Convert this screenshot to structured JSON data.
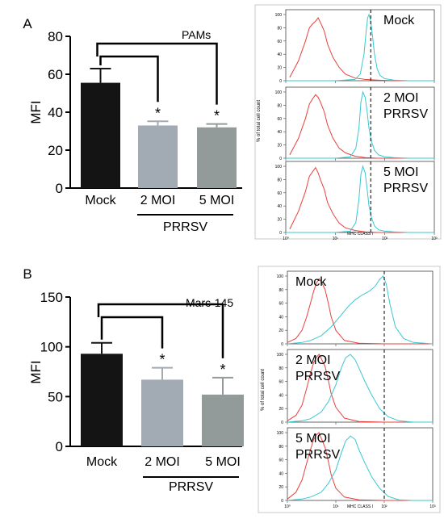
{
  "chart_data": [
    {
      "type": "bar",
      "panel_label": "A",
      "title": "PAMs",
      "ylabel": "MFI",
      "ylim": [
        0,
        80
      ],
      "yticks": [
        "0",
        "20",
        "40",
        "60",
        "80"
      ],
      "categories": [
        "Mock",
        "2 MOI",
        "5 MOI"
      ],
      "values": [
        55.5,
        33,
        32
      ],
      "errors": [
        7.5,
        2.2,
        1.8
      ],
      "bar_colors": [
        "#141414",
        "#a2abb3",
        "#939a9a"
      ],
      "significance": [
        "",
        "*",
        "*"
      ],
      "group_label": "PRRSV"
    },
    {
      "type": "line",
      "panel": "A",
      "ylabel": "% of total cell count",
      "xlabel": "MHC CLASS I",
      "x_scale": "log",
      "xlim": [
        1,
        1000
      ],
      "yticks": [
        "0",
        "20",
        "40",
        "60",
        "80",
        "100"
      ],
      "xticks": [
        "10⁰",
        "10¹",
        "10²",
        "10³"
      ],
      "dashed_x": 52,
      "histograms": [
        {
          "label": [
            "Mock"
          ],
          "series": [
            {
              "color": "#e8413c",
              "x": [
                1.2,
                1.8,
                2.5,
                3,
                3.5,
                4,
                4.5,
                5,
                6,
                7,
                9,
                12,
                16,
                25,
                40,
                70,
                150,
                400,
                1000
              ],
              "y": [
                5,
                30,
                60,
                80,
                86,
                90,
                95,
                88,
                75,
                55,
                35,
                20,
                10,
                4,
                2,
                1,
                0,
                0,
                0
              ]
            },
            {
              "color": "#39c8d2",
              "x": [
                1,
                10,
                25,
                32,
                38,
                42,
                45,
                48,
                52,
                56,
                62,
                70,
                80,
                100,
                150,
                300,
                1000
              ],
              "y": [
                0,
                0,
                2,
                10,
                40,
                75,
                95,
                100,
                90,
                70,
                40,
                18,
                8,
                3,
                1,
                0,
                0
              ]
            }
          ]
        },
        {
          "label": [
            "2 MOI",
            "PRRSV"
          ],
          "series": [
            {
              "color": "#e8413c",
              "x": [
                1.2,
                1.8,
                2.5,
                3,
                3.5,
                4,
                4.5,
                5,
                6,
                7,
                9,
                12,
                16,
                25,
                40,
                70,
                150,
                400,
                1000
              ],
              "y": [
                5,
                30,
                60,
                82,
                90,
                96,
                92,
                85,
                70,
                50,
                30,
                15,
                8,
                3,
                1,
                0,
                0,
                0,
                0
              ]
            },
            {
              "color": "#39c8d2",
              "x": [
                1,
                10,
                20,
                26,
                30,
                33,
                36,
                40,
                44,
                48,
                54,
                62,
                75,
                100,
                150,
                300,
                1000
              ],
              "y": [
                0,
                0,
                2,
                15,
                45,
                85,
                100,
                92,
                70,
                45,
                25,
                12,
                5,
                2,
                1,
                0,
                0
              ]
            }
          ]
        },
        {
          "label": [
            "5 MOI",
            "PRRSV"
          ],
          "series": [
            {
              "color": "#e8413c",
              "x": [
                1.2,
                1.8,
                2.5,
                3,
                3.5,
                4,
                4.5,
                5,
                6,
                7,
                9,
                12,
                16,
                25,
                40,
                70,
                150,
                400,
                1000
              ],
              "y": [
                5,
                32,
                62,
                85,
                92,
                98,
                90,
                80,
                65,
                45,
                28,
                14,
                7,
                3,
                1,
                0,
                0,
                0,
                0
              ]
            },
            {
              "color": "#39c8d2",
              "x": [
                1,
                10,
                20,
                26,
                30,
                33,
                36,
                40,
                44,
                48,
                54,
                62,
                75,
                100,
                150,
                300,
                1000
              ],
              "y": [
                0,
                0,
                2,
                15,
                50,
                88,
                100,
                90,
                65,
                40,
                22,
                10,
                4,
                2,
                1,
                0,
                0
              ]
            }
          ]
        }
      ]
    },
    {
      "type": "bar",
      "panel_label": "B",
      "title": "Marc-145",
      "ylabel": "MFI",
      "ylim": [
        0,
        150
      ],
      "yticks": [
        "0",
        "50",
        "100",
        "150"
      ],
      "categories": [
        "Mock",
        "2 MOI",
        "5 MOI"
      ],
      "values": [
        93,
        67,
        52
      ],
      "errors": [
        11,
        12,
        17
      ],
      "bar_colors": [
        "#141414",
        "#a2abb3",
        "#939a9a"
      ],
      "significance": [
        "",
        "*",
        "*"
      ],
      "group_label": "PRRSV"
    },
    {
      "type": "line",
      "panel": "B",
      "ylabel": "% of total cell count",
      "xlabel": "MHC CLASS I",
      "x_scale": "log",
      "xlim": [
        1,
        1000
      ],
      "yticks": [
        "0",
        "20",
        "40",
        "60",
        "80",
        "100"
      ],
      "xticks": [
        "10⁰",
        "10¹",
        "10²",
        "10³"
      ],
      "dashed_x": 100,
      "histograms": [
        {
          "label": [
            "Mock"
          ],
          "series": [
            {
              "color": "#e8413c",
              "x": [
                1,
                1.5,
                2,
                2.5,
                3,
                3.5,
                4,
                4.5,
                5,
                6,
                7,
                8,
                10,
                15,
                30,
                100,
                1000
              ],
              "y": [
                2,
                8,
                20,
                40,
                60,
                78,
                90,
                96,
                92,
                80,
                60,
                40,
                20,
                5,
                1,
                0,
                0
              ]
            },
            {
              "color": "#39c8d2",
              "x": [
                1,
                2,
                3,
                5,
                8,
                12,
                18,
                25,
                35,
                50,
                65,
                80,
                95,
                110,
                130,
                170,
                250,
                400,
                1000
              ],
              "y": [
                0,
                2,
                5,
                12,
                25,
                40,
                55,
                65,
                72,
                78,
                85,
                95,
                100,
                88,
                60,
                25,
                8,
                2,
                0
              ]
            }
          ]
        },
        {
          "label": [
            "2 MOI",
            "PRRSV"
          ],
          "series": [
            {
              "color": "#e8413c",
              "x": [
                1,
                1.5,
                2,
                2.5,
                3,
                3.5,
                4,
                4.5,
                5,
                6,
                7,
                8,
                10,
                15,
                30,
                100,
                1000
              ],
              "y": [
                2,
                10,
                25,
                50,
                72,
                88,
                96,
                100,
                94,
                82,
                62,
                42,
                22,
                6,
                1,
                0,
                0
              ]
            },
            {
              "color": "#39c8d2",
              "x": [
                1,
                2,
                3,
                5,
                7,
                10,
                13,
                16,
                20,
                25,
                30,
                40,
                55,
                80,
                120,
                200,
                400,
                1000
              ],
              "y": [
                0,
                2,
                5,
                15,
                30,
                55,
                80,
                95,
                100,
                92,
                80,
                60,
                40,
                20,
                8,
                2,
                0,
                0
              ]
            }
          ]
        },
        {
          "label": [
            "5 MOI",
            "PRRSV"
          ],
          "series": [
            {
              "color": "#e8413c",
              "x": [
                1,
                1.5,
                2,
                2.5,
                3,
                3.5,
                4,
                4.5,
                5,
                6,
                7,
                8,
                10,
                15,
                30,
                100,
                1000
              ],
              "y": [
                2,
                12,
                30,
                55,
                75,
                90,
                97,
                100,
                92,
                78,
                58,
                38,
                18,
                5,
                1,
                0,
                0
              ]
            },
            {
              "color": "#39c8d2",
              "x": [
                1,
                2,
                3,
                5,
                7,
                10,
                13,
                16,
                20,
                25,
                30,
                40,
                55,
                80,
                120,
                200,
                400,
                1000
              ],
              "y": [
                0,
                2,
                5,
                12,
                25,
                45,
                70,
                88,
                95,
                90,
                75,
                55,
                35,
                18,
                6,
                1,
                0,
                0
              ]
            }
          ]
        }
      ]
    }
  ]
}
